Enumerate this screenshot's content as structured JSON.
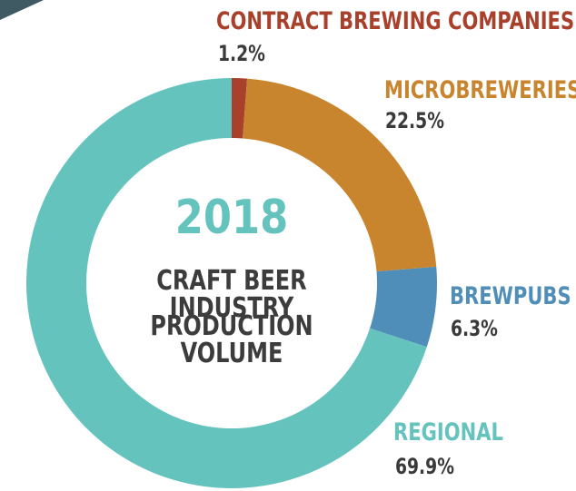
{
  "colors": {
    "contract": "#a8402b",
    "microbreweries": "#c9852d",
    "brewpubs": "#4f8eb8",
    "regional": "#65c3be",
    "corner": "#3f5a62"
  },
  "center": {
    "year": "2018",
    "line1": "CRAFT BEER INDUSTRY",
    "line2": "PRODUCTION VOLUME"
  },
  "labels": {
    "contract": {
      "name": "CONTRACT BREWING COMPANIES",
      "value": "1.2%"
    },
    "microbreweries": {
      "name": "MICROBREWERIES",
      "value": "22.5%"
    },
    "brewpubs": {
      "name": "BREWPUBS",
      "value": "6.3%"
    },
    "regional": {
      "name": "REGIONAL",
      "value": "69.9%"
    }
  },
  "chart_data": {
    "type": "pie",
    "donut": true,
    "start": "top, clockwise",
    "categories": [
      "Contract Brewing Companies",
      "Microbreweries",
      "Brewpubs",
      "Regional"
    ],
    "values": [
      1.2,
      22.5,
      6.3,
      69.9
    ],
    "colors": [
      "#a8402b",
      "#c9852d",
      "#4f8eb8",
      "#65c3be"
    ],
    "title": "2018 CRAFT BEER INDUSTRY PRODUCTION VOLUME"
  }
}
